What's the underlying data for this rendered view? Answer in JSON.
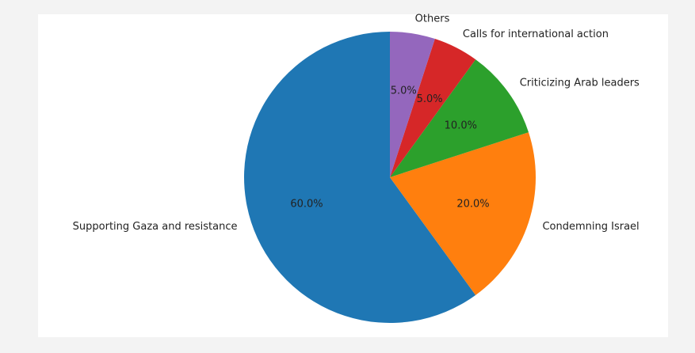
{
  "chart_data": {
    "type": "pie",
    "title": "",
    "start_angle_deg": 90,
    "direction": "counterclockwise",
    "slices": [
      {
        "label": "Supporting Gaza and resistance",
        "value": 60.0,
        "pct_label": "60.0%",
        "color": "#1f77b4"
      },
      {
        "label": "Condemning Israel",
        "value": 20.0,
        "pct_label": "20.0%",
        "color": "#ff7f0e"
      },
      {
        "label": "Criticizing Arab leaders",
        "value": 10.0,
        "pct_label": "10.0%",
        "color": "#2ca02c"
      },
      {
        "label": "Calls for international action",
        "value": 5.0,
        "pct_label": "5.0%",
        "color": "#d62728"
      },
      {
        "label": "Others",
        "value": 5.0,
        "pct_label": "5.0%",
        "color": "#9467bd"
      }
    ]
  }
}
